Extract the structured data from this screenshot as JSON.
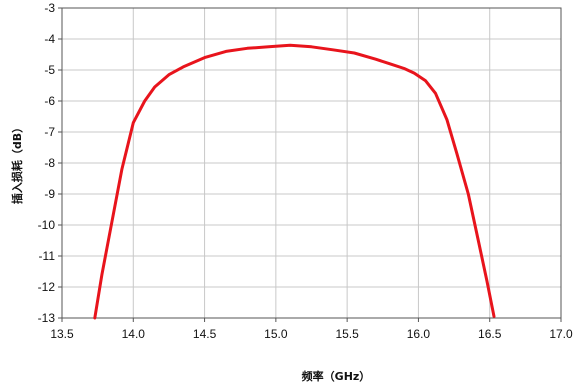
{
  "chart_data": {
    "type": "line",
    "title": "",
    "xlabel": "频率（GHz）",
    "ylabel": "插入损耗（dB）",
    "xlim": [
      13.5,
      17.0
    ],
    "ylim": [
      -13,
      -3
    ],
    "xticks": [
      "13.5",
      "14.0",
      "14.5",
      "15.0",
      "15.5",
      "16.0",
      "16.5",
      "17.0"
    ],
    "yticks": [
      "-3",
      "-4",
      "-5",
      "-6",
      "-7",
      "-8",
      "-9",
      "-10",
      "-11",
      "-12",
      "-13"
    ],
    "grid": true,
    "line_color": "#e8141c",
    "series": [
      {
        "x": [
          13.73,
          13.78,
          13.85,
          13.92,
          14.0,
          14.08,
          14.15,
          14.25,
          14.35,
          14.5,
          14.65,
          14.8,
          14.95,
          15.1,
          15.25,
          15.4,
          15.55,
          15.7,
          15.8,
          15.9,
          15.97,
          16.05,
          16.12,
          16.2,
          16.27,
          16.35,
          16.42,
          16.48,
          16.53
        ],
        "y": [
          -13.0,
          -11.6,
          -9.9,
          -8.2,
          -6.7,
          -6.0,
          -5.55,
          -5.15,
          -4.9,
          -4.6,
          -4.4,
          -4.3,
          -4.25,
          -4.2,
          -4.25,
          -4.35,
          -4.45,
          -4.65,
          -4.8,
          -4.95,
          -5.1,
          -5.35,
          -5.75,
          -6.6,
          -7.7,
          -9.0,
          -10.5,
          -11.8,
          -12.95
        ]
      }
    ]
  }
}
